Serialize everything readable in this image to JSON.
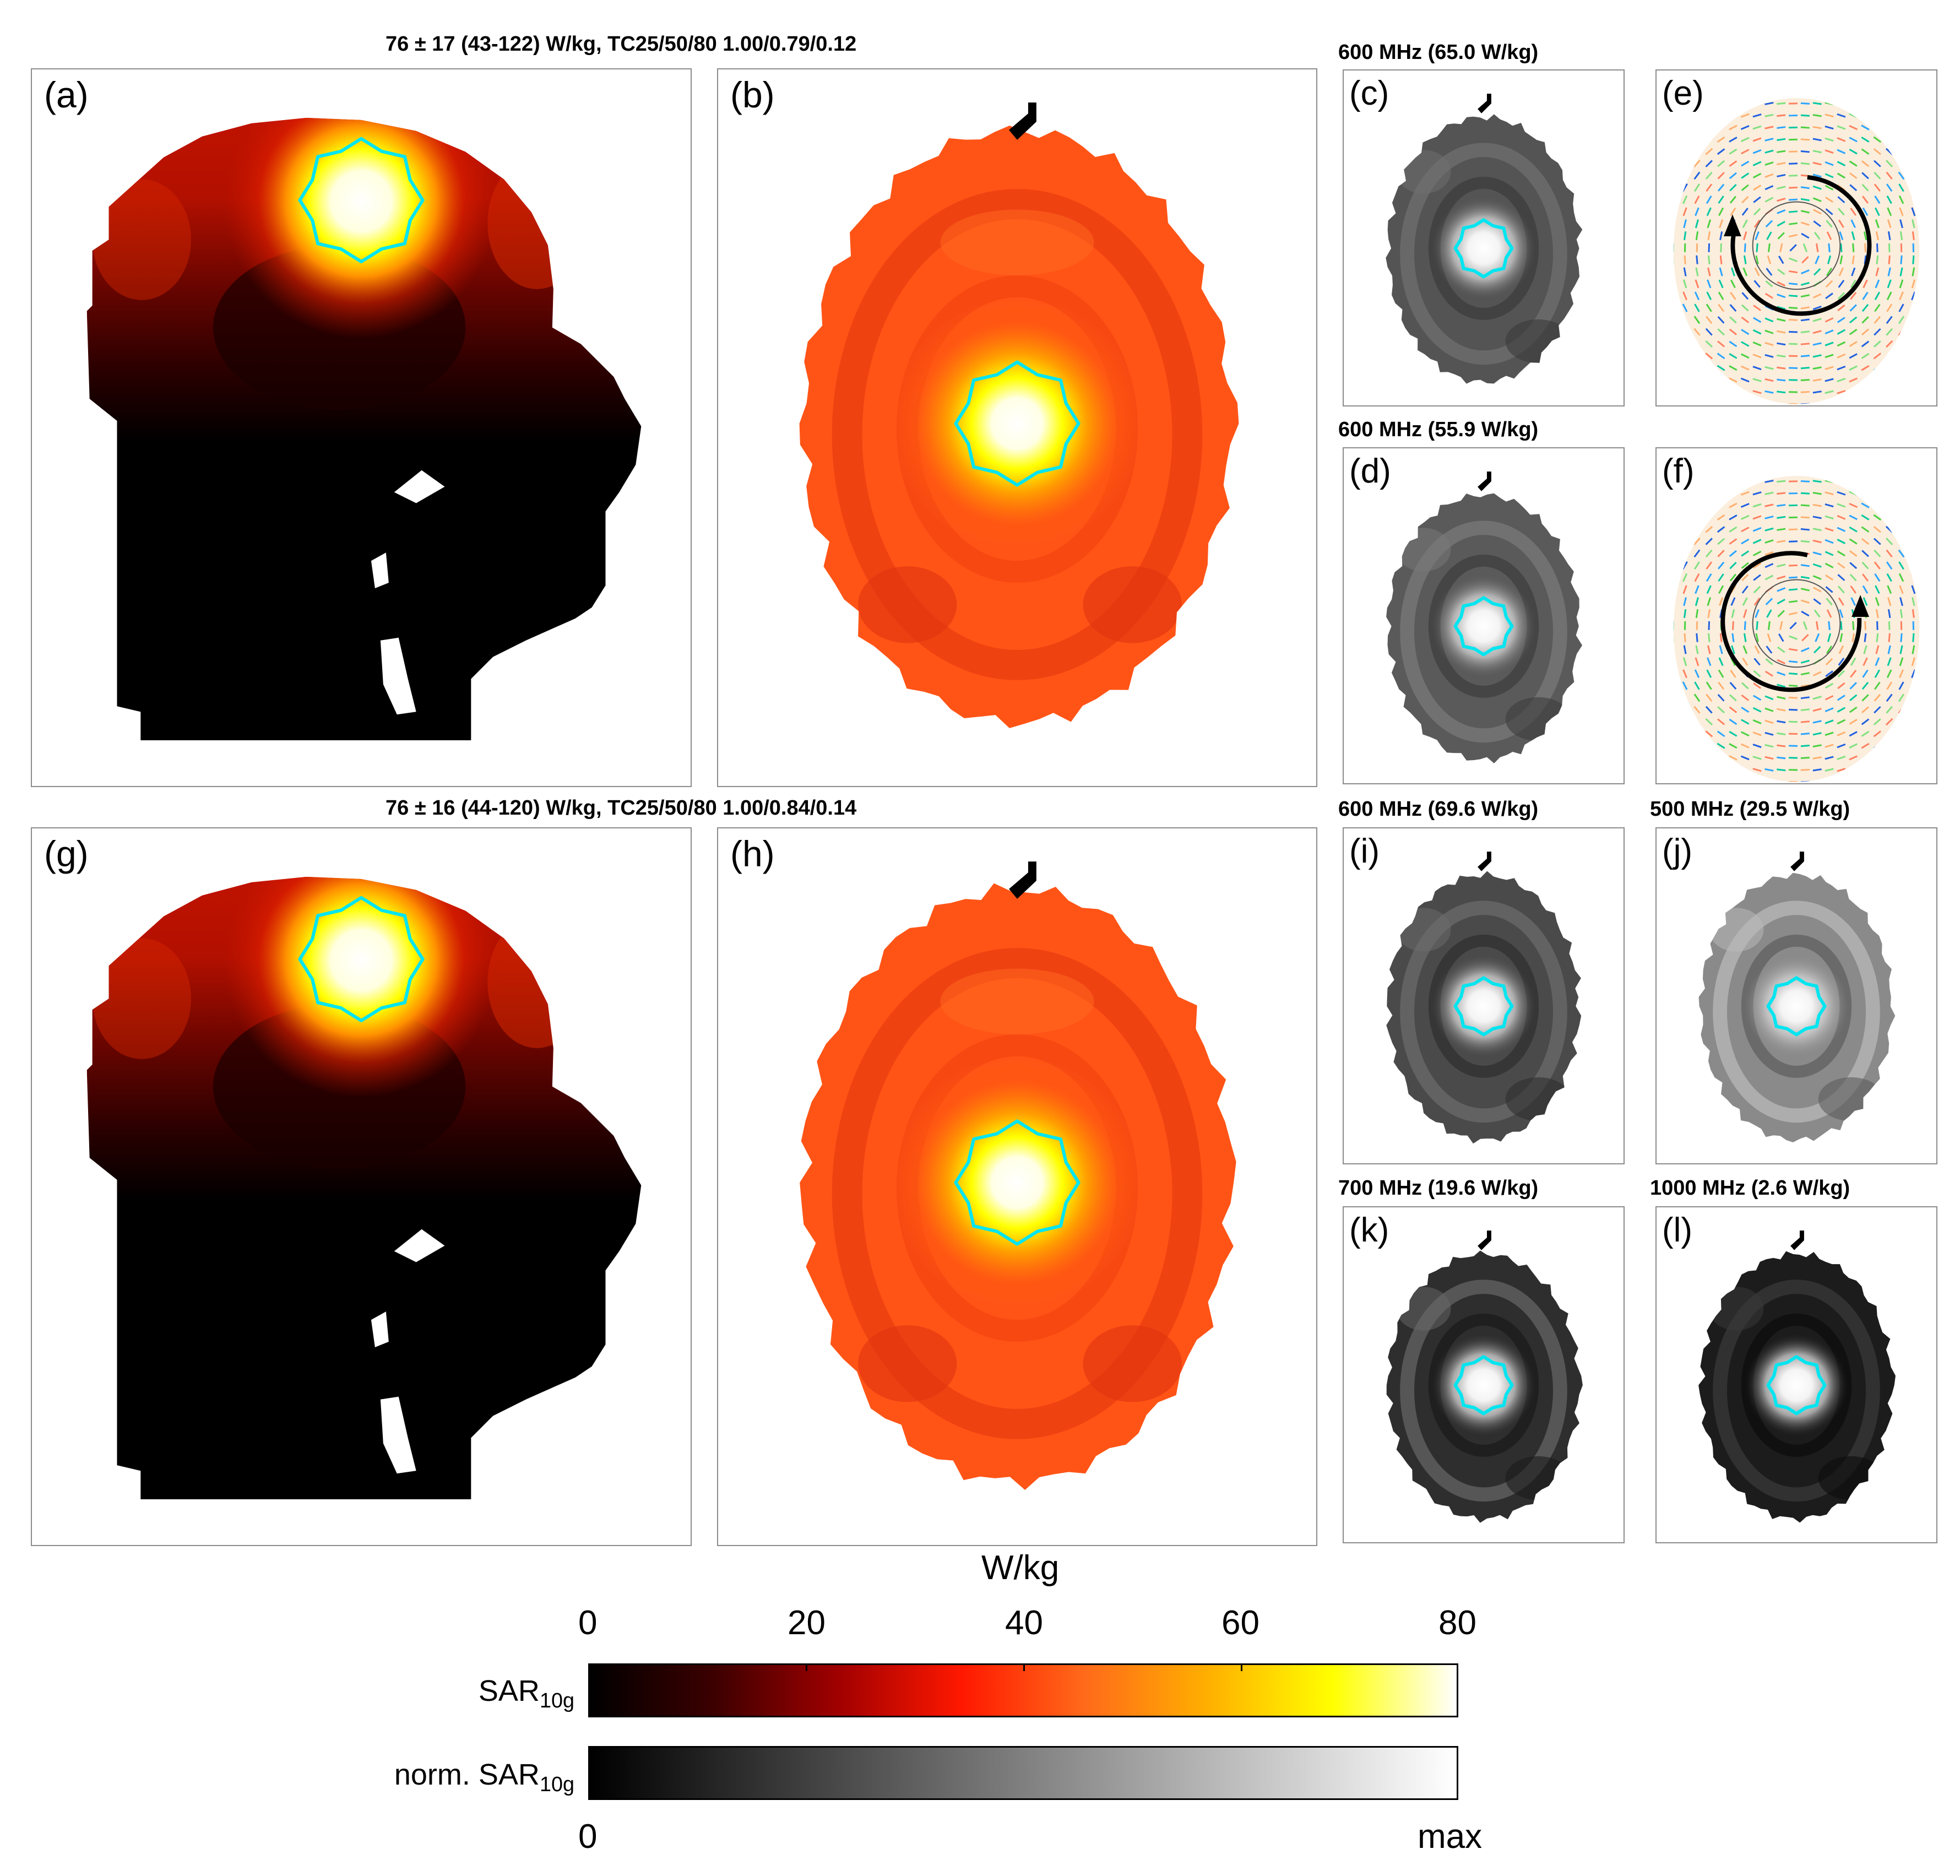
{
  "rows": [
    {
      "title": "76 ± 17 (43-122) W/kg, TC25/50/80 1.00/0.79/0.12"
    },
    {
      "title": "76 ± 16 (44-120) W/kg, TC25/50/80 1.00/0.84/0.14"
    }
  ],
  "panels": {
    "a": {
      "label": "(a)"
    },
    "b": {
      "label": "(b)"
    },
    "c": {
      "label": "(c)",
      "title": "600 MHz (65.0 W/kg)"
    },
    "d": {
      "label": "(d)",
      "title": "600 MHz (55.9 W/kg)"
    },
    "e": {
      "label": "(e)"
    },
    "f": {
      "label": "(f)"
    },
    "g": {
      "label": "(g)"
    },
    "h": {
      "label": "(h)"
    },
    "i": {
      "label": "(i)",
      "title": "600 MHz (69.6 W/kg)"
    },
    "j": {
      "label": "(j)",
      "title": "500 MHz (29.5 W/kg)"
    },
    "k": {
      "label": "(k)",
      "title": "700 MHz (19.6 W/kg)"
    },
    "l": {
      "label": "(l)",
      "title": "1000 MHz (2.6 W/kg)"
    }
  },
  "colorbar": {
    "unit": "W/kg",
    "ticks": [
      "0",
      "20",
      "40",
      "60",
      "80"
    ],
    "range": [
      0,
      80
    ],
    "sar_label": "SAR",
    "sar_sub": "10g",
    "norm_label": "norm. SAR",
    "norm_sub": "10g",
    "norm_min": "0",
    "norm_max": "max",
    "hot_colors": [
      "#000000",
      "#3c0000",
      "#a00000",
      "#ff1800",
      "#ff6a1a",
      "#ffb000",
      "#ffff00",
      "#ffffff"
    ],
    "gray_colors": [
      "#000000",
      "#ffffff"
    ]
  },
  "colors": {
    "target_outline": "#00e5f0",
    "frame": "#8c8c8c",
    "arrow": "#000000"
  }
}
